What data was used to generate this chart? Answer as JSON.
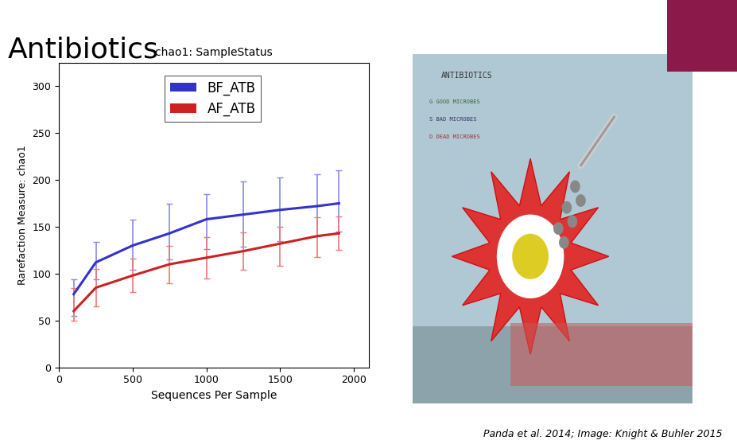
{
  "title": "chao1: SampleStatus",
  "xlabel": "Sequences Per Sample",
  "ylabel": "Rarefaction Measure: chao1",
  "slide_title": "Antibiotics",
  "citation": "Panda et al. 2014; Image: Knight & Buhler 2015",
  "xlim": [
    0,
    2100
  ],
  "ylim": [
    0,
    325
  ],
  "xticks": [
    0,
    500,
    1000,
    1500,
    2000
  ],
  "yticks": [
    0,
    50,
    100,
    150,
    200,
    250,
    300
  ],
  "bf_x": [
    100,
    250,
    500,
    750,
    1000,
    1250,
    1500,
    1750,
    1900
  ],
  "bf_y": [
    78,
    112,
    130,
    143,
    158,
    163,
    168,
    172,
    175
  ],
  "bf_err_low": [
    23,
    18,
    26,
    28,
    32,
    34,
    33,
    32,
    30
  ],
  "bf_err_high": [
    16,
    22,
    28,
    32,
    27,
    35,
    35,
    34,
    35
  ],
  "af_x": [
    100,
    250,
    500,
    750,
    1000,
    1250,
    1500,
    1750,
    1900
  ],
  "af_y": [
    60,
    85,
    98,
    110,
    117,
    124,
    132,
    140,
    143
  ],
  "af_err_low": [
    10,
    20,
    18,
    20,
    22,
    20,
    24,
    22,
    18
  ],
  "af_err_high": [
    25,
    20,
    18,
    20,
    22,
    20,
    18,
    20,
    18
  ],
  "bf_color": "#3333cc",
  "af_color": "#cc2222",
  "bf_err_color": "#8888ee",
  "af_err_color": "#ee7777",
  "bg_color": "#ffffff",
  "plot_bg": "#ffffff",
  "magenta_rect_color": "#8b1a4a",
  "legend_labels": [
    "BF_ATB",
    "AF_ATB"
  ],
  "legend_colors": [
    "#3333cc",
    "#cc2222"
  ]
}
